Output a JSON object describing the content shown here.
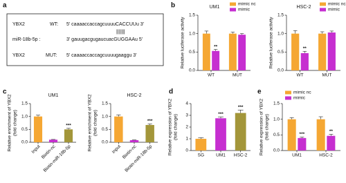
{
  "panel_labels": [
    "a",
    "b",
    "c",
    "d",
    "e"
  ],
  "sequence_panel": {
    "rows": [
      {
        "name": "YBX2",
        "variant": "WT:",
        "sequence": "5' caaaaccaccagcuuuuCACCUUu 3'"
      },
      {
        "pairing": "|||||||"
      },
      {
        "name": "miR-18b-5p :",
        "sequence": "3' gauugacgugaucuacGUGGAAu 5'"
      },
      {
        "name": "YBX2",
        "variant": "MUT:",
        "sequence": "5' caaaaccaccagcuuuugaaggu 3'"
      }
    ]
  },
  "chart_data": [
    {
      "type": "bar",
      "title": "UM1",
      "ylabel": [
        "Relative luciferase activity"
      ],
      "categories": [
        "WT",
        "MUT"
      ],
      "series": [
        {
          "name": "mimic nc",
          "color": "#f5a733",
          "values": [
            1.0,
            1.0
          ],
          "errors": [
            0.07,
            0.04
          ],
          "significance": [
            null,
            null
          ]
        },
        {
          "name": "mimic",
          "color": "#c62fd0",
          "values": [
            0.53,
            0.97
          ],
          "errors": [
            0.04,
            0.03
          ],
          "significance": [
            "**",
            null
          ]
        }
      ],
      "ylim": [
        0,
        1.5
      ],
      "yticks": [
        {
          "value": 0,
          "label": "0.0"
        },
        0.5,
        {
          "value": 1,
          "label": "1.0"
        },
        1.5
      ],
      "legend": "upper right"
    },
    {
      "type": "bar",
      "title": "HSC-2",
      "ylabel": [
        "Relative luciferase activity"
      ],
      "categories": [
        "WT",
        "MUT"
      ],
      "series": [
        {
          "name": "mimic nc",
          "color": "#f5a733",
          "values": [
            1.0,
            1.0
          ],
          "errors": [
            0.08,
            0.05
          ],
          "significance": [
            null,
            null
          ]
        },
        {
          "name": "mimic",
          "color": "#c62fd0",
          "values": [
            0.47,
            1.03
          ],
          "errors": [
            0.05,
            0.04
          ],
          "significance": [
            "**",
            null
          ]
        }
      ],
      "ylim": [
        0,
        1.5
      ],
      "yticks": [
        {
          "value": 0,
          "label": "0.0"
        },
        0.5,
        {
          "value": 1,
          "label": "1.0"
        },
        1.5
      ],
      "legend": "upper right"
    },
    {
      "type": "bar",
      "title": "UM1",
      "ylabel": [
        "Relative enrichment of YBX2",
        "(fold change)"
      ],
      "categories": [
        "Input",
        "Biotin-nc",
        "Biotin-miR-18b-5p"
      ],
      "values": [
        1.0,
        0.1,
        0.5
      ],
      "colors": [
        "#f5a733",
        "#c62fd0",
        "#a3963a"
      ],
      "errors": [
        0.05,
        0.01,
        0.04
      ],
      "significance": [
        null,
        null,
        "***"
      ],
      "ylim": [
        0,
        1.5
      ],
      "yticks": [
        {
          "value": 0,
          "label": "0.0"
        },
        0.5,
        {
          "value": 1,
          "label": "1.0"
        },
        1.5
      ]
    },
    {
      "type": "bar",
      "title": "HSC-2",
      "ylabel": [
        "Relative enrichment of YBX2",
        "(fold change)"
      ],
      "categories": [
        "Input",
        "Biotin-nc",
        "Biotin-miR-18b-5p"
      ],
      "values": [
        1.0,
        0.08,
        0.67
      ],
      "colors": [
        "#f5a733",
        "#c62fd0",
        "#a3963a"
      ],
      "errors": [
        0.06,
        0.01,
        0.04
      ],
      "significance": [
        null,
        null,
        "***"
      ],
      "ylim": [
        0,
        1.5
      ],
      "yticks": [
        {
          "value": 0,
          "label": "0.0"
        },
        0.5,
        {
          "value": 1,
          "label": "1.0"
        },
        1.5
      ]
    },
    {
      "type": "bar",
      "ylabel": [
        "Relative expression of YBX2",
        "(fold change)"
      ],
      "categories": [
        "SG",
        "UM1",
        "HSC-2"
      ],
      "values": [
        1.0,
        2.75,
        3.2
      ],
      "colors": [
        "#f5a733",
        "#c62fd0",
        "#a3963a"
      ],
      "errors": [
        0.1,
        0.12,
        0.25
      ],
      "significance": [
        null,
        "***",
        "***"
      ],
      "ylim": [
        0,
        4
      ],
      "yticks": [
        0,
        1,
        2,
        3,
        4
      ]
    },
    {
      "type": "bar",
      "ylabel": [
        "Relative expression of YBX2",
        "(fold change)"
      ],
      "categories": [
        "UM1",
        "HSC-2"
      ],
      "series": [
        {
          "name": "mimic nc",
          "color": "#f5a733",
          "values": [
            1.0,
            1.0
          ],
          "errors": [
            0.05,
            0.08
          ],
          "significance": [
            null,
            null
          ]
        },
        {
          "name": "mimic",
          "color": "#c62fd0",
          "values": [
            0.4,
            0.47
          ],
          "errors": [
            0.03,
            0.05
          ],
          "significance": [
            "***",
            "**"
          ]
        }
      ],
      "ylim": [
        0,
        1.5
      ],
      "yticks": [
        {
          "value": 0,
          "label": "0.0"
        },
        0.5,
        {
          "value": 1,
          "label": "1.0"
        },
        1.5
      ],
      "legend": "upper left"
    }
  ]
}
